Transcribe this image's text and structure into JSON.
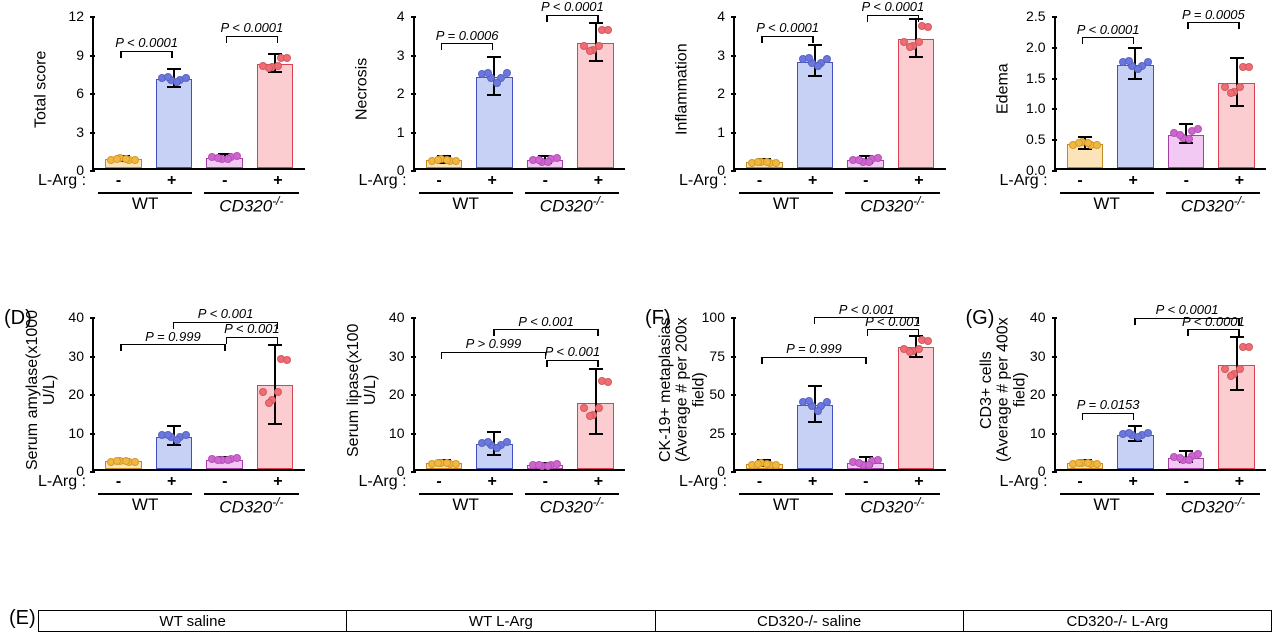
{
  "colors": {
    "wt_minus_bar": "#fde4b8",
    "wt_minus_pt": "#f5b73b",
    "wt_minus_border": "#c08a1e",
    "wt_plus_bar": "#c7d0f5",
    "wt_plus_pt": "#6a77e0",
    "wt_plus_border": "#4250c4",
    "cd_minus_bar": "#f1c9f2",
    "cd_minus_pt": "#d063d2",
    "cd_minus_border": "#a63ea8",
    "cd_plus_bar": "#fbccd0",
    "cd_plus_pt": "#f26b73",
    "cd_plus_border": "#d94250",
    "axis": "#000000",
    "bg": "#ffffff"
  },
  "typography": {
    "axis_label_pt": 16,
    "tick_pt": 14,
    "pval_pt": 13,
    "panel_letter_pt": 20
  },
  "larg_label": "L-Arg :",
  "pm": [
    "-",
    "+",
    "-",
    "+"
  ],
  "group_labels": {
    "wt": "WT",
    "cd320": "CD320",
    "cd320_sup": "-/-"
  },
  "row1": [
    {
      "ylabel": "Total score",
      "ymax": 12,
      "ytick_step": 3,
      "bars": [
        0.7,
        7.0,
        0.8,
        8.2
      ],
      "errs": [
        0.2,
        0.7,
        0.2,
        0.7
      ],
      "pvals": [
        {
          "text": "P < 0.0001",
          "from": 0,
          "to": 1,
          "y": 9.0
        },
        {
          "text": "P < 0.0001",
          "from": 2,
          "to": 3,
          "y": 10.2
        }
      ]
    },
    {
      "ylabel": "Necrosis",
      "ymax": 4,
      "ytick_step": 1,
      "bars": [
        0.2,
        2.4,
        0.2,
        3.3
      ],
      "errs": [
        0.1,
        0.5,
        0.1,
        0.5
      ],
      "pvals": [
        {
          "text": "P = 0.0006",
          "from": 0,
          "to": 1,
          "y": 3.2
        },
        {
          "text": "P < 0.0001",
          "from": 2,
          "to": 3,
          "y": 3.95
        }
      ]
    },
    {
      "ylabel": "Inflammation",
      "ymax": 4,
      "ytick_step": 1,
      "bars": [
        0.15,
        2.8,
        0.2,
        3.4
      ],
      "errs": [
        0.05,
        0.4,
        0.1,
        0.5
      ],
      "pvals": [
        {
          "text": "P < 0.0001",
          "from": 0,
          "to": 1,
          "y": 3.4
        },
        {
          "text": "P < 0.0001",
          "from": 2,
          "to": 3,
          "y": 3.95
        }
      ]
    },
    {
      "ylabel": "Edema",
      "ymax": 2.5,
      "ytick_step": 0.5,
      "bars": [
        0.4,
        1.7,
        0.55,
        1.4
      ],
      "errs": [
        0.1,
        0.25,
        0.15,
        0.4
      ],
      "pvals": [
        {
          "text": "P < 0.0001",
          "from": 0,
          "to": 1,
          "y": 2.1
        },
        {
          "text": "P = 0.0005",
          "from": 2,
          "to": 3,
          "y": 2.35
        }
      ]
    }
  ],
  "row2": [
    {
      "letter": "(D)",
      "ylabel": "Serum amylase(x1000 U/L)",
      "ymax": 40,
      "ytick_step": 10,
      "bars": [
        2.0,
        8.5,
        2.5,
        22.0
      ],
      "errs": [
        0.5,
        2.5,
        0.5,
        10.5
      ],
      "pvals": [
        {
          "text": "P = 0.999",
          "from": 0,
          "to": 2,
          "y": 32,
          "lift": true
        },
        {
          "text": "P < 0.001",
          "from": 2,
          "to": 3,
          "y": 34,
          "lift": false
        },
        {
          "text": "P < 0.001",
          "from": 1,
          "to": 3,
          "y": 38,
          "lift": true
        }
      ]
    },
    {
      "letter": "",
      "ylabel": "Serum lipase(x100 U/L)",
      "ymax": 40,
      "ytick_step": 10,
      "bars": [
        1.5,
        6.5,
        1.0,
        17.5
      ],
      "errs": [
        0.5,
        3.0,
        0.4,
        8.5
      ],
      "pvals": [
        {
          "text": "P > 0.999",
          "from": 0,
          "to": 2,
          "y": 30,
          "lift": true
        },
        {
          "text": "P < 0.001",
          "from": 2,
          "to": 3,
          "y": 28,
          "lift": false
        },
        {
          "text": "P < 0.001",
          "from": 1,
          "to": 3,
          "y": 36,
          "lift": true
        }
      ]
    },
    {
      "letter": "(F)",
      "ylabel": "CK-19+ metaplasias\n(Average # per 200x field)",
      "ymax": 100,
      "ytick_step": 25,
      "bars": [
        3,
        42,
        4,
        80
      ],
      "errs": [
        2,
        12,
        3,
        7
      ],
      "pvals": [
        {
          "text": "P = 0.999",
          "from": 0,
          "to": 2,
          "y": 72,
          "lift": true
        },
        {
          "text": "P < 0.001",
          "from": 2,
          "to": 3,
          "y": 90,
          "lift": false
        },
        {
          "text": "P < 0.001",
          "from": 1,
          "to": 3,
          "y": 98,
          "lift": true
        }
      ]
    },
    {
      "letter": "(G)",
      "ylabel": "CD3+ cells\n(Average # per 400x field)",
      "ymax": 40,
      "ytick_step": 10,
      "bars": [
        1.5,
        9.0,
        3.0,
        27.5
      ],
      "errs": [
        0.5,
        2.0,
        1.5,
        7.0
      ],
      "pvals": [
        {
          "text": "P = 0.0153",
          "from": 0,
          "to": 1,
          "y": 14,
          "lift": false
        },
        {
          "text": "P < 0.0001",
          "from": 2,
          "to": 3,
          "y": 36,
          "lift": false
        },
        {
          "text": "P < 0.0001",
          "from": 1,
          "to": 3,
          "y": 39,
          "lift": true
        }
      ]
    }
  ],
  "row3": {
    "letter": "(E)",
    "cells": [
      "WT saline",
      "WT L-Arg",
      "CD320-/- saline",
      "CD320-/- L-Arg"
    ]
  }
}
